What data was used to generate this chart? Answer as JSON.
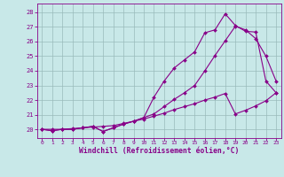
{
  "bg_color": "#c8e8e8",
  "line_color": "#880088",
  "grid_color": "#99bbbb",
  "xlabel": "Windchill (Refroidissement éolien,°C)",
  "x_ticks": [
    0,
    1,
    2,
    3,
    4,
    5,
    6,
    7,
    8,
    9,
    10,
    11,
    12,
    13,
    14,
    15,
    16,
    17,
    18,
    19,
    20,
    21,
    22,
    23
  ],
  "y_ticks": [
    20,
    21,
    22,
    23,
    24,
    25,
    26,
    27,
    28
  ],
  "ylim": [
    19.4,
    28.6
  ],
  "xlim": [
    -0.5,
    23.5
  ],
  "line1": [
    20.0,
    19.9,
    20.0,
    20.0,
    20.1,
    20.2,
    19.85,
    20.1,
    20.35,
    20.55,
    20.8,
    22.2,
    23.3,
    24.2,
    24.75,
    25.3,
    26.6,
    26.8,
    27.9,
    27.1,
    26.7,
    26.65,
    23.3,
    22.5
  ],
  "line2": [
    20.0,
    20.0,
    20.0,
    20.05,
    20.1,
    20.15,
    20.2,
    20.25,
    20.4,
    20.55,
    20.7,
    20.9,
    21.1,
    21.35,
    21.55,
    21.75,
    22.0,
    22.2,
    22.45,
    21.05,
    21.3,
    21.6,
    21.95,
    22.5
  ],
  "line3": [
    20.0,
    19.9,
    20.0,
    20.0,
    20.1,
    20.2,
    19.85,
    20.1,
    20.35,
    20.55,
    20.8,
    21.05,
    21.55,
    22.05,
    22.5,
    23.0,
    24.0,
    25.05,
    26.05,
    27.05,
    26.8,
    26.2,
    25.0,
    23.3
  ]
}
